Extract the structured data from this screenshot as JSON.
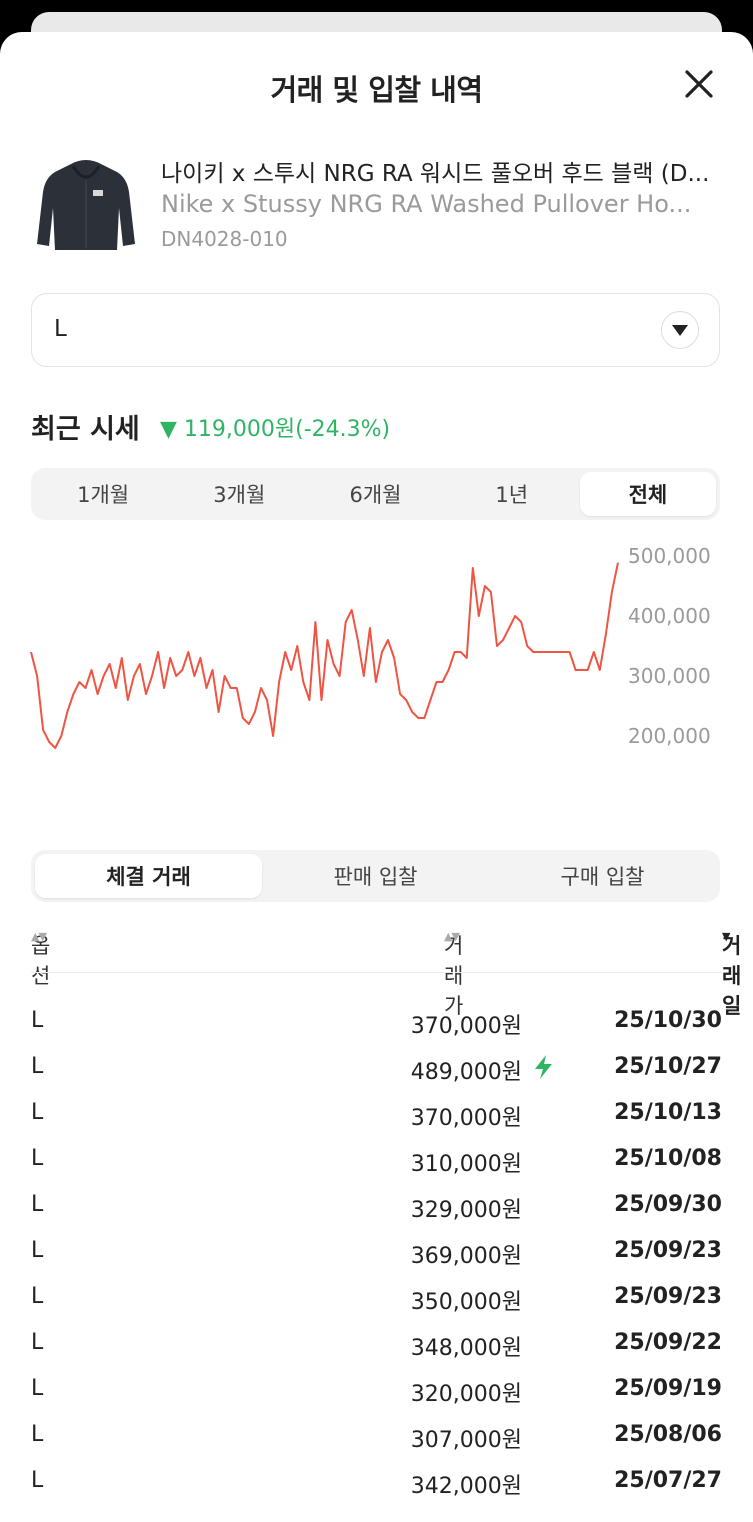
{
  "header": {
    "title": "거래 및 입찰 내역"
  },
  "product": {
    "name_ko": "나이키 x 스투시 NRG RA 워시드 풀오버 후드 블랙 (D...",
    "name_en": "Nike x Stussy NRG RA Washed Pullover Ho...",
    "code": "DN4028-010",
    "thumbnail_icon": "hoodie-thumbnail"
  },
  "size_select": {
    "value": "L"
  },
  "market": {
    "label": "최근 시세",
    "change": "▼ 119,000원(-24.3%)",
    "change_color": "#2fb464"
  },
  "period_tabs": [
    "1개월",
    "3개월",
    "6개월",
    "1년",
    "전체"
  ],
  "period_active": 4,
  "chart_data": {
    "type": "line",
    "ylim": [
      160000,
      510000
    ],
    "yticks": [
      "500,000",
      "400,000",
      "300,000",
      "200,000"
    ],
    "ytick_values": [
      500000,
      400000,
      300000,
      200000
    ],
    "color": "#ee5544",
    "series": [
      {
        "values": [
          340000,
          300000,
          210000,
          190000,
          180000,
          200000,
          240000,
          270000,
          290000,
          280000,
          310000,
          270000,
          300000,
          320000,
          280000,
          330000,
          260000,
          300000,
          320000,
          270000,
          300000,
          340000,
          280000,
          330000,
          300000,
          310000,
          340000,
          300000,
          330000,
          280000,
          310000,
          240000,
          300000,
          280000,
          280000,
          230000,
          220000,
          240000,
          280000,
          260000,
          200000,
          290000,
          340000,
          310000,
          350000,
          290000,
          260000,
          390000,
          260000,
          360000,
          320000,
          300000,
          390000,
          410000,
          360000,
          300000,
          380000,
          290000,
          340000,
          360000,
          330000,
          270000,
          260000,
          240000,
          230000,
          230000,
          260000,
          290000,
          290000,
          310000,
          340000,
          340000,
          330000,
          480000,
          400000,
          450000,
          440000,
          350000,
          360000,
          380000,
          400000,
          390000,
          350000,
          340000,
          340000,
          340000,
          340000,
          340000,
          340000,
          340000,
          310000,
          310000,
          310000,
          340000,
          310000,
          370000,
          440000,
          489000
        ]
      }
    ]
  },
  "list_tabs": [
    "체결 거래",
    "판매 입찰",
    "구매 입찰"
  ],
  "list_active": 0,
  "table": {
    "headers": {
      "option": "옵션",
      "price": "거래가",
      "date": "거래일"
    },
    "rows": [
      {
        "option": "L",
        "price": "370,000원",
        "date": "25/10/30",
        "bolt": false
      },
      {
        "option": "L",
        "price": "489,000원",
        "date": "25/10/27",
        "bolt": true
      },
      {
        "option": "L",
        "price": "370,000원",
        "date": "25/10/13",
        "bolt": false
      },
      {
        "option": "L",
        "price": "310,000원",
        "date": "25/10/08",
        "bolt": false
      },
      {
        "option": "L",
        "price": "329,000원",
        "date": "25/09/30",
        "bolt": false
      },
      {
        "option": "L",
        "price": "369,000원",
        "date": "25/09/23",
        "bolt": false
      },
      {
        "option": "L",
        "price": "350,000원",
        "date": "25/09/23",
        "bolt": false
      },
      {
        "option": "L",
        "price": "348,000원",
        "date": "25/09/22",
        "bolt": false
      },
      {
        "option": "L",
        "price": "320,000원",
        "date": "25/09/19",
        "bolt": false
      },
      {
        "option": "L",
        "price": "307,000원",
        "date": "25/08/06",
        "bolt": false
      },
      {
        "option": "L",
        "price": "342,000원",
        "date": "25/07/27",
        "bolt": false
      }
    ]
  }
}
